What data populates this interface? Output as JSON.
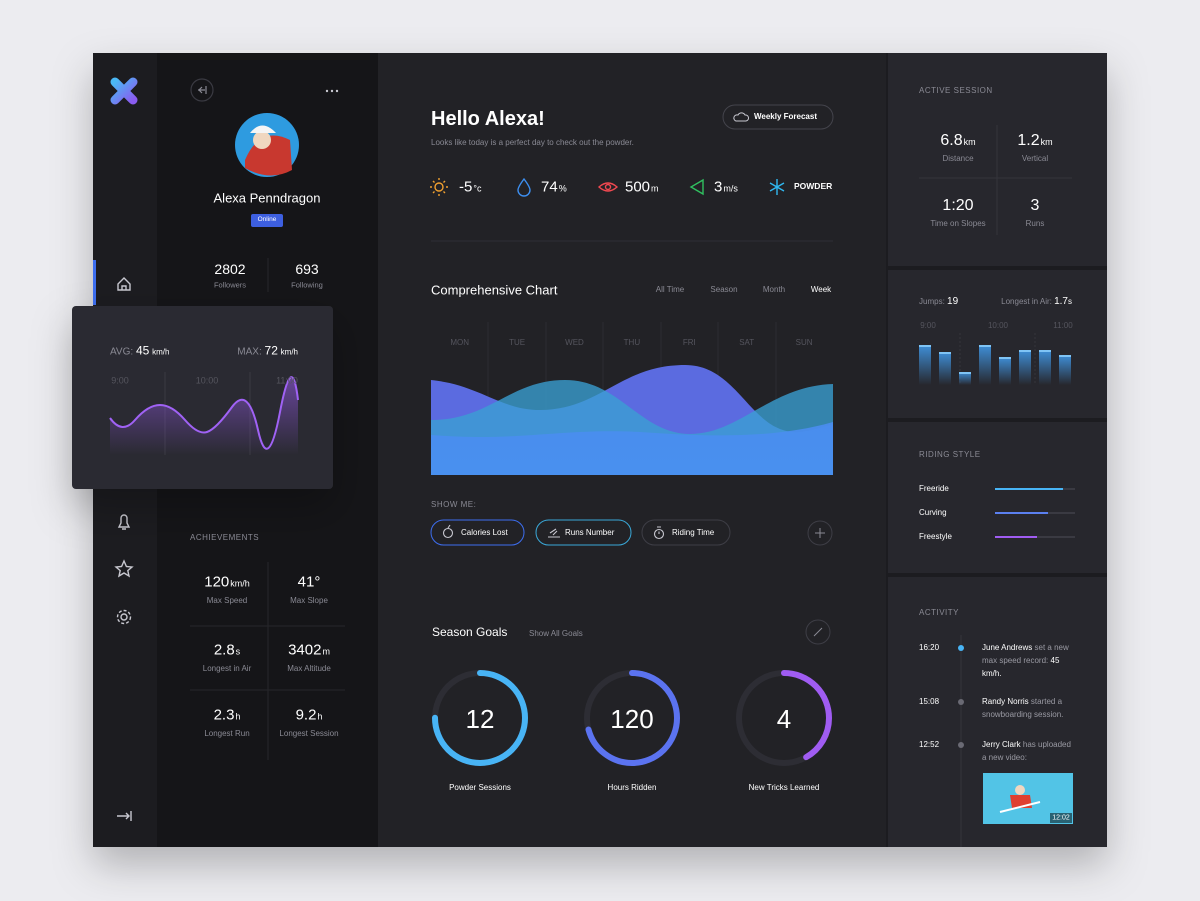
{
  "profile": {
    "name": "Alexa Penndragon",
    "status": "Online",
    "stats": [
      {
        "value": "2802",
        "label": "Followers"
      },
      {
        "value": "693",
        "label": "Following"
      }
    ]
  },
  "speed_card": {
    "avg_label": "AVG:",
    "avg_value": "45",
    "avg_unit": "km/h",
    "max_label": "MAX:",
    "max_value": "72",
    "max_unit": "km/h",
    "times": [
      "9:00",
      "10:00",
      "11:00"
    ]
  },
  "achievements": {
    "title": "ACHIEVEMENTS",
    "items": [
      {
        "value": "120",
        "unit": "km/h",
        "label": "Max Speed"
      },
      {
        "value": "41°",
        "label": "Max Slope"
      },
      {
        "value": "2.8",
        "unit": "s",
        "label": "Longest in Air"
      },
      {
        "value": "3402",
        "unit": "m",
        "label": "Max Altitude"
      },
      {
        "value": "2.3",
        "unit": "h",
        "label": "Longest Run"
      },
      {
        "value": "9.2",
        "unit": "h",
        "label": "Longest Session"
      }
    ]
  },
  "header": {
    "greeting": "Hello Alexa!",
    "subtitle": "Looks like today is a perfect day to check out the powder.",
    "forecast_button": "Weekly Forecast"
  },
  "weather": [
    {
      "value": "-5",
      "unit": "°c"
    },
    {
      "value": "74",
      "unit": "%"
    },
    {
      "value": "500",
      "unit": "m"
    },
    {
      "value": "3",
      "unit": "m/s"
    },
    {
      "value": "POWDER"
    }
  ],
  "comprehensive_chart": {
    "title": "Comprehensive Chart",
    "filters": [
      "All Time",
      "Season",
      "Month",
      "Week"
    ],
    "days": [
      "MON",
      "TUE",
      "WED",
      "THU",
      "FRI",
      "SAT",
      "SUN"
    ]
  },
  "show_me": {
    "label": "SHOW ME:",
    "buttons": [
      "Calories Lost",
      "Runs Number",
      "Riding Time"
    ]
  },
  "season_goals": {
    "title": "Season Goals",
    "link": "Show All Goals",
    "goals": [
      {
        "value": "12",
        "label": "Powder Sessions"
      },
      {
        "value": "120",
        "label": "Hours Ridden"
      },
      {
        "value": "4",
        "label": "New Tricks Learned"
      }
    ]
  },
  "active_session": {
    "title": "ACTIVE SESSION",
    "stats": [
      {
        "value": "6.8",
        "unit": "km",
        "label": "Distance"
      },
      {
        "value": "1.2",
        "unit": "km",
        "label": "Vertical"
      },
      {
        "value": "1:20",
        "label": "Time on Slopes"
      },
      {
        "value": "3",
        "label": "Runs"
      }
    ]
  },
  "jumps": {
    "jumps_label": "Jumps:",
    "jumps_value": "19",
    "air_label": "Longest in Air:",
    "air_value": "1.7",
    "air_unit": "s",
    "times": [
      "9:00",
      "10:00",
      "11:00"
    ]
  },
  "riding_style": {
    "title": "RIDING STYLE",
    "styles": [
      "Freeride",
      "Curving",
      "Freestyle"
    ]
  },
  "activity": {
    "title": "ACTIVITY",
    "items": [
      {
        "time": "16:20",
        "name": "June Andrews",
        "text": "set a new max speed record:",
        "highlight": "45 km/h."
      },
      {
        "time": "15:08",
        "name": "Randy Norris",
        "text": "started a snowboarding session."
      },
      {
        "time": "12:52",
        "name": "Jerry Clark",
        "text": "has uploaded a new video:",
        "video_time": "12:02"
      }
    ]
  }
}
